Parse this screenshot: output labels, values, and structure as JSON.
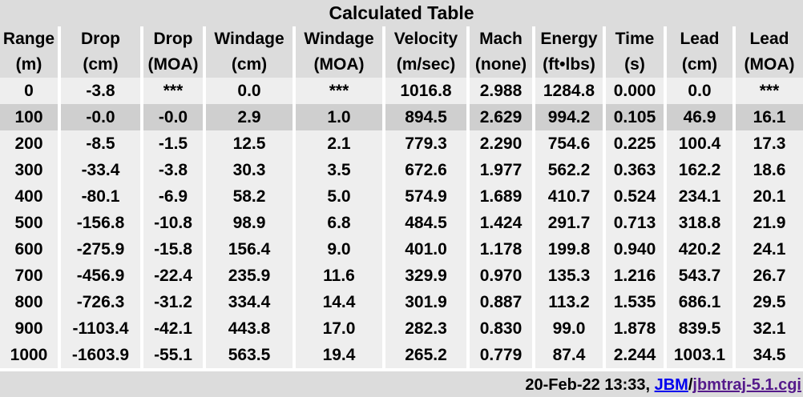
{
  "title": "Calculated Table",
  "headers": [
    {
      "name": "Range",
      "unit": "(m)"
    },
    {
      "name": "Drop",
      "unit": "(cm)"
    },
    {
      "name": "Drop",
      "unit": "(MOA)"
    },
    {
      "name": "Windage",
      "unit": "(cm)"
    },
    {
      "name": "Windage",
      "unit": "(MOA)"
    },
    {
      "name": "Velocity",
      "unit": "(m/sec)"
    },
    {
      "name": "Mach",
      "unit": "(none)"
    },
    {
      "name": "Energy",
      "unit": "(ft•lbs)"
    },
    {
      "name": "Time",
      "unit": "(s)"
    },
    {
      "name": "Lead",
      "unit": "(cm)"
    },
    {
      "name": "Lead",
      "unit": "(MOA)"
    }
  ],
  "highlighted_row": 1,
  "rows": [
    [
      "0",
      "-3.8",
      "***",
      "0.0",
      "***",
      "1016.8",
      "2.988",
      "1284.8",
      "0.000",
      "0.0",
      "***"
    ],
    [
      "100",
      "-0.0",
      "-0.0",
      "2.9",
      "1.0",
      "894.5",
      "2.629",
      "994.2",
      "0.105",
      "46.9",
      "16.1"
    ],
    [
      "200",
      "-8.5",
      "-1.5",
      "12.5",
      "2.1",
      "779.3",
      "2.290",
      "754.6",
      "0.225",
      "100.4",
      "17.3"
    ],
    [
      "300",
      "-33.4",
      "-3.8",
      "30.3",
      "3.5",
      "672.6",
      "1.977",
      "562.2",
      "0.363",
      "162.2",
      "18.6"
    ],
    [
      "400",
      "-80.1",
      "-6.9",
      "58.2",
      "5.0",
      "574.9",
      "1.689",
      "410.7",
      "0.524",
      "234.1",
      "20.1"
    ],
    [
      "500",
      "-156.8",
      "-10.8",
      "98.9",
      "6.8",
      "484.5",
      "1.424",
      "291.7",
      "0.713",
      "318.8",
      "21.9"
    ],
    [
      "600",
      "-275.9",
      "-15.8",
      "156.4",
      "9.0",
      "401.0",
      "1.178",
      "199.8",
      "0.940",
      "420.2",
      "24.1"
    ],
    [
      "700",
      "-456.9",
      "-22.4",
      "235.9",
      "11.6",
      "329.9",
      "0.970",
      "135.3",
      "1.216",
      "543.7",
      "26.7"
    ],
    [
      "800",
      "-726.3",
      "-31.2",
      "334.4",
      "14.4",
      "301.9",
      "0.887",
      "113.2",
      "1.535",
      "686.1",
      "29.5"
    ],
    [
      "900",
      "-1103.4",
      "-42.1",
      "443.8",
      "17.0",
      "282.3",
      "0.830",
      "99.0",
      "1.878",
      "839.5",
      "32.1"
    ],
    [
      "1000",
      "-1603.9",
      "-55.1",
      "563.5",
      "19.4",
      "265.2",
      "0.779",
      "87.4",
      "2.244",
      "1003.1",
      "34.5"
    ]
  ],
  "footer": {
    "timestamp": "20-Feb-22 13:33, ",
    "link1": "JBM",
    "separator": "/",
    "link2": "jbmtraj-5.1.cgi"
  }
}
